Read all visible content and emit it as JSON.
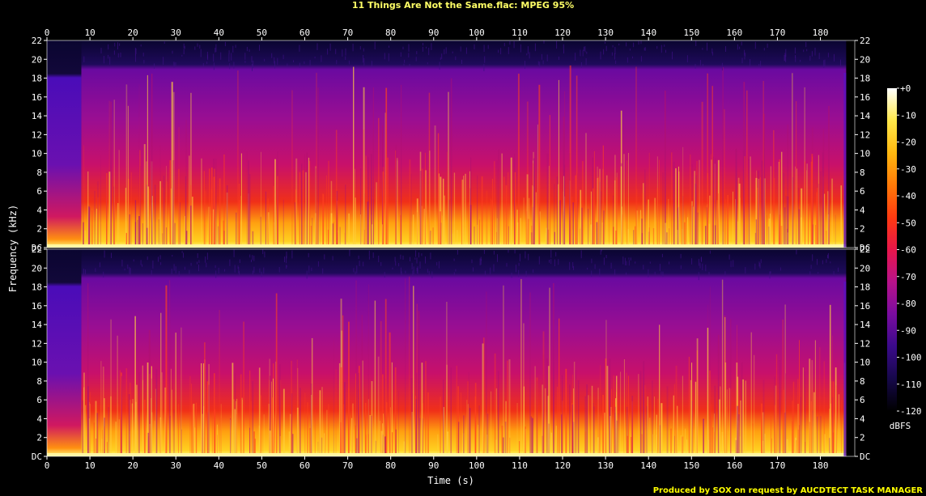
{
  "title": "11 Things Are Not the Same.flac: MPEG 95%",
  "credit": "Produced by SOX on request by AUCDTECT TASK MANAGER",
  "chart_data": {
    "type": "heatmap",
    "title": "11 Things Are Not the Same.flac: MPEG 95%",
    "xlabel": "Time (s)",
    "ylabel": "Frequency (kHz)",
    "xlim": [
      0,
      188
    ],
    "x_ticks": [
      "0",
      "10",
      "20",
      "30",
      "40",
      "50",
      "60",
      "70",
      "80",
      "90",
      "100",
      "110",
      "120",
      "130",
      "140",
      "150",
      "160",
      "170",
      "180"
    ],
    "y_ticks": [
      "DC",
      "2",
      "4",
      "6",
      "8",
      "10",
      "12",
      "14",
      "16",
      "18",
      "20",
      "22"
    ],
    "ylim_khz": [
      0,
      22
    ],
    "channels": [
      {
        "name": "",
        "cutoff_khz": 19.5
      },
      {
        "name": "",
        "cutoff_khz": 19.5
      }
    ],
    "track_end_s": 186,
    "colorbar": {
      "label": "dBFS",
      "ticks": [
        "+0",
        "-10",
        "-20",
        "-30",
        "-40",
        "-50",
        "-60",
        "-70",
        "-80",
        "-90",
        "-100",
        "-110",
        "-120"
      ],
      "range": [
        -120,
        0
      ],
      "colors": [
        "#000000",
        "#16084a",
        "#3a0a8a",
        "#7a0ca0",
        "#b8128a",
        "#e8164a",
        "#ff3a10",
        "#ff7a08",
        "#ffb810",
        "#ffe84a",
        "#ffffff"
      ]
    }
  }
}
